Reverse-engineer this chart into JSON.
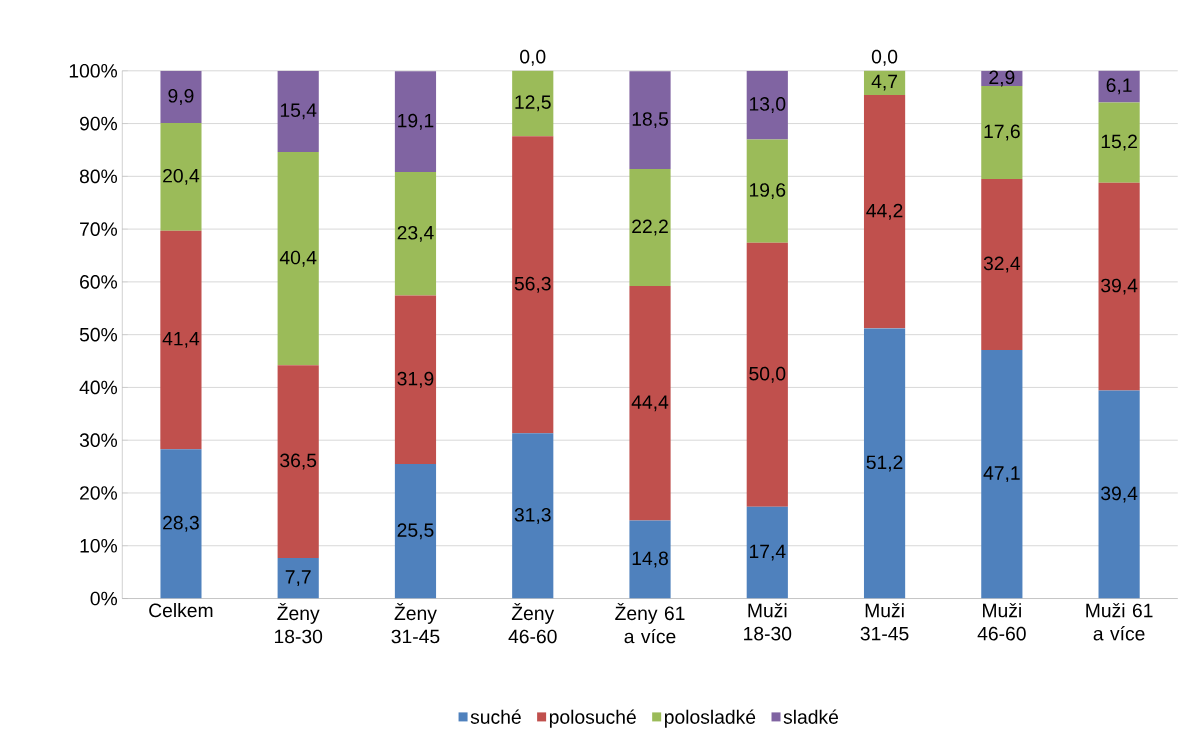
{
  "chart_data": {
    "type": "bar",
    "stacked": true,
    "categories": [
      "Celkem",
      "Ženy 18-30",
      "Ženy 31-45",
      "Ženy 46-60",
      "Ženy 61 a více",
      "Muži 18-30",
      "Muži 31-45",
      "Muži 46-60",
      "Muži 61 a více"
    ],
    "series": [
      {
        "name": "suché",
        "color": "#4f81bd",
        "values": [
          28.3,
          7.7,
          25.5,
          31.3,
          14.8,
          17.4,
          51.2,
          47.1,
          39.4
        ],
        "value_labels": [
          "28,3",
          "7,7",
          "25,5",
          "31,3",
          "14,8",
          "17,4",
          "51,2",
          "47,1",
          "39,4"
        ]
      },
      {
        "name": "polosuché",
        "color": "#c0504d",
        "values": [
          41.4,
          36.5,
          31.9,
          56.3,
          44.4,
          50.0,
          44.2,
          32.4,
          39.4
        ],
        "value_labels": [
          "41,4",
          "36,5",
          "31,9",
          "56,3",
          "44,4",
          "50,0",
          "44,2",
          "32,4",
          "39,4"
        ]
      },
      {
        "name": "polosladké",
        "color": "#9bbb59",
        "values": [
          20.4,
          40.4,
          23.4,
          12.5,
          22.2,
          19.6,
          4.7,
          17.6,
          15.2
        ],
        "value_labels": [
          "20,4",
          "40,4",
          "23,4",
          "12,5",
          "22,2",
          "19,6",
          "4,7",
          "17,6",
          "15,2"
        ]
      },
      {
        "name": "sladké",
        "color": "#8064a2",
        "values": [
          9.9,
          15.4,
          19.1,
          0.0,
          18.5,
          13.0,
          0.0,
          2.9,
          6.1
        ],
        "value_labels": [
          "9,9",
          "15,4",
          "19,1",
          "0,0",
          "18,5",
          "13,0",
          "0,0",
          "2,9",
          "6,1"
        ]
      }
    ],
    "ylim": [
      0,
      100
    ],
    "yticks": [
      {
        "value": 0,
        "label": "0%"
      },
      {
        "value": 10,
        "label": "10%"
      },
      {
        "value": 20,
        "label": "20%"
      },
      {
        "value": 30,
        "label": "30%"
      },
      {
        "value": 40,
        "label": "40%"
      },
      {
        "value": 50,
        "label": "50%"
      },
      {
        "value": 60,
        "label": "60%"
      },
      {
        "value": 70,
        "label": "70%"
      },
      {
        "value": 80,
        "label": "80%"
      },
      {
        "value": 90,
        "label": "90%"
      },
      {
        "value": 100,
        "label": "100%"
      }
    ],
    "grid": "y",
    "legend": "bottom"
  }
}
